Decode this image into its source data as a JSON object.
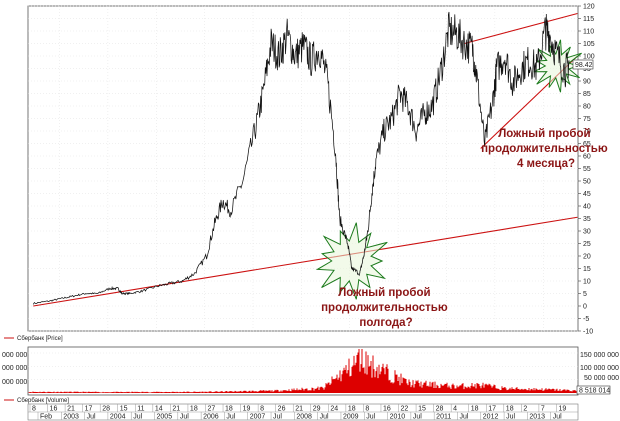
{
  "chart_data": [
    {
      "type": "line",
      "legend": "Сбербанк [Price]",
      "y_ticks": [
        "-10",
        "-5",
        "0",
        "5",
        "10",
        "15",
        "20",
        "25",
        "30",
        "35",
        "40",
        "45",
        "50",
        "55",
        "60",
        "65",
        "70",
        "75",
        "80",
        "85",
        "90",
        "95",
        "100",
        "105",
        "110",
        "115",
        "120"
      ],
      "ylim": [
        -10,
        120
      ],
      "last_value": "98.42",
      "colors": {
        "price": "#111111",
        "trend": "#cc1111",
        "star": "#1c7a1c"
      },
      "x": [
        "2002-06",
        "2002-10",
        "2003-01",
        "2003-04",
        "2003-07",
        "2003-10",
        "2004-01",
        "2004-03",
        "2004-04",
        "2004-06",
        "2004-09",
        "2005-01",
        "2005-04",
        "2005-07",
        "2005-10",
        "2006-01",
        "2006-03",
        "2006-05",
        "2006-07",
        "2006-10",
        "2007-01",
        "2007-03",
        "2007-05",
        "2007-07",
        "2007-09",
        "2007-11",
        "2008-01",
        "2008-03",
        "2008-05",
        "2008-07",
        "2008-09",
        "2008-10",
        "2008-12",
        "2009-01",
        "2009-03",
        "2009-04",
        "2009-05",
        "2009-06",
        "2009-07",
        "2009-09",
        "2009-11",
        "2010-01",
        "2010-03",
        "2010-05",
        "2010-07",
        "2010-09",
        "2010-11",
        "2011-01",
        "2011-03",
        "2011-05",
        "2011-07",
        "2011-08",
        "2011-10",
        "2011-12",
        "2012-01",
        "2012-03",
        "2012-05",
        "2012-07",
        "2012-09",
        "2012-11",
        "2013-01",
        "2013-02",
        "2013-04",
        "2013-06",
        "2013-07"
      ],
      "values": [
        1,
        2,
        3,
        4,
        5,
        5,
        7,
        7,
        5,
        5,
        6,
        8,
        9,
        10,
        13,
        20,
        33,
        42,
        38,
        50,
        70,
        85,
        105,
        100,
        108,
        100,
        104,
        98,
        103,
        90,
        62,
        35,
        25,
        15,
        13,
        20,
        30,
        45,
        58,
        70,
        75,
        85,
        80,
        70,
        77,
        80,
        93,
        110,
        109,
        105,
        103,
        92,
        65,
        82,
        95,
        100,
        89,
        95,
        98,
        95,
        110,
        109,
        100,
        94,
        98
      ],
      "trend_lines": [
        {
          "from": [
            "2002-06",
            0
          ],
          "to": [
            "2013-09",
            35.5
          ]
        },
        {
          "from": [
            "2011-05",
            105
          ],
          "to": [
            "2013-09",
            117
          ]
        },
        {
          "from": [
            "2011-09",
            63
          ],
          "to": [
            "2013-09",
            100
          ]
        }
      ],
      "annotations": [
        {
          "text_lines": [
            "Ложный пробой",
            "продолжительностью",
            "полгода?"
          ],
          "at": [
            "2009-01",
            20
          ]
        },
        {
          "text_lines": [
            "Ложный пробой",
            "продолжительностью",
            "4 месяца?"
          ],
          "at": [
            "2013-04",
            95
          ]
        }
      ]
    },
    {
      "type": "bar",
      "legend": "Сбербанк [Volume]",
      "y_ticks": [
        "50 000 000",
        "100 000 000",
        "150 000 000"
      ],
      "left_labels": [
        "000 000",
        "000 000",
        "000 000"
      ],
      "last_value": "8 518 014",
      "color": "#dd0000",
      "x": [
        "2002-06",
        "2004-01",
        "2006-01",
        "2007-06",
        "2008-06",
        "2008-10",
        "2009-01",
        "2009-03",
        "2009-06",
        "2009-10",
        "2010-03",
        "2010-08",
        "2011-03",
        "2011-09",
        "2012-03",
        "2012-09",
        "2013-03",
        "2013-09"
      ],
      "values": [
        5,
        4,
        5,
        10,
        22,
        80,
        120,
        160,
        125,
        90,
        45,
        38,
        30,
        35,
        20,
        18,
        15,
        10
      ]
    }
  ],
  "x_axis": {
    "days": [
      "8",
      "16",
      "21",
      "17",
      "28",
      "15",
      "11",
      "14",
      "21",
      "18",
      "27",
      "18",
      "19",
      "8",
      "26",
      "21",
      "29",
      "24",
      "18",
      "8",
      "16",
      "22",
      "15",
      "28",
      "4",
      "18",
      "17",
      "18",
      "2",
      "7",
      "19"
    ],
    "labels": [
      "Feb",
      "2003",
      "Jul",
      "2004",
      "Jul",
      "2005",
      "Jul",
      "2006",
      "Jul",
      "2007",
      "Jul",
      "2008",
      "Jul",
      "2009",
      "Jul",
      "2010",
      "Jul",
      "2011",
      "Jul",
      "2012",
      "Jul",
      "2013",
      "Jul"
    ]
  }
}
